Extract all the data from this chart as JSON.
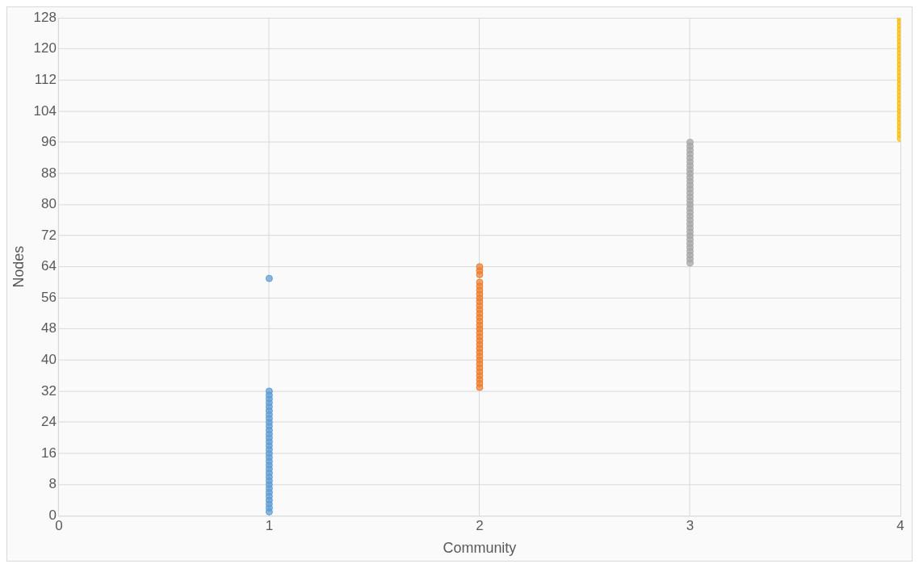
{
  "chart_data": {
    "type": "scatter",
    "xlabel": "Community",
    "ylabel": "Nodes",
    "xlim": [
      0,
      4
    ],
    "xticks": [
      0,
      1,
      2,
      3,
      4
    ],
    "ylim": [
      0,
      128
    ],
    "yticks": [
      0,
      8,
      16,
      24,
      32,
      40,
      48,
      56,
      64,
      72,
      80,
      88,
      96,
      104,
      112,
      120,
      128
    ],
    "grid": true,
    "marker": "circle",
    "legend": false,
    "series": [
      {
        "color": "#5b9bd5",
        "x": [
          1,
          1,
          1,
          1,
          1,
          1,
          1,
          1,
          1,
          1,
          1,
          1,
          1,
          1,
          1,
          1,
          1,
          1,
          1,
          1,
          1,
          1,
          1,
          1,
          1,
          1,
          1,
          1,
          1,
          1,
          1,
          1,
          1
        ],
        "values": [
          1,
          2,
          3,
          4,
          5,
          6,
          7,
          8,
          9,
          10,
          11,
          12,
          13,
          14,
          15,
          16,
          17,
          18,
          19,
          20,
          21,
          22,
          23,
          24,
          25,
          26,
          27,
          28,
          29,
          30,
          31,
          32,
          61
        ]
      },
      {
        "color": "#ed7d31",
        "x": [
          2,
          2,
          2,
          2,
          2,
          2,
          2,
          2,
          2,
          2,
          2,
          2,
          2,
          2,
          2,
          2,
          2,
          2,
          2,
          2,
          2,
          2,
          2,
          2,
          2,
          2,
          2,
          2,
          2,
          2,
          2
        ],
        "values": [
          33,
          34,
          35,
          36,
          37,
          38,
          39,
          40,
          41,
          42,
          43,
          44,
          45,
          46,
          47,
          48,
          49,
          50,
          51,
          52,
          53,
          54,
          55,
          56,
          57,
          58,
          59,
          60,
          62,
          63,
          64
        ]
      },
      {
        "color": "#a5a5a5",
        "x": [
          3,
          3,
          3,
          3,
          3,
          3,
          3,
          3,
          3,
          3,
          3,
          3,
          3,
          3,
          3,
          3,
          3,
          3,
          3,
          3,
          3,
          3,
          3,
          3,
          3,
          3,
          3,
          3,
          3,
          3,
          3,
          3
        ],
        "values": [
          65,
          66,
          67,
          68,
          69,
          70,
          71,
          72,
          73,
          74,
          75,
          76,
          77,
          78,
          79,
          80,
          81,
          82,
          83,
          84,
          85,
          86,
          87,
          88,
          89,
          90,
          91,
          92,
          93,
          94,
          95,
          96
        ]
      },
      {
        "color": "#ffc000",
        "x": [
          4,
          4,
          4,
          4,
          4,
          4,
          4,
          4,
          4,
          4,
          4,
          4,
          4,
          4,
          4,
          4,
          4,
          4,
          4,
          4,
          4,
          4,
          4,
          4,
          4,
          4,
          4,
          4,
          4,
          4,
          4,
          4
        ],
        "values": [
          97,
          98,
          99,
          100,
          101,
          102,
          103,
          104,
          105,
          106,
          107,
          108,
          109,
          110,
          111,
          112,
          113,
          114,
          115,
          116,
          117,
          118,
          119,
          120,
          121,
          122,
          123,
          124,
          125,
          126,
          127,
          128
        ]
      }
    ]
  }
}
